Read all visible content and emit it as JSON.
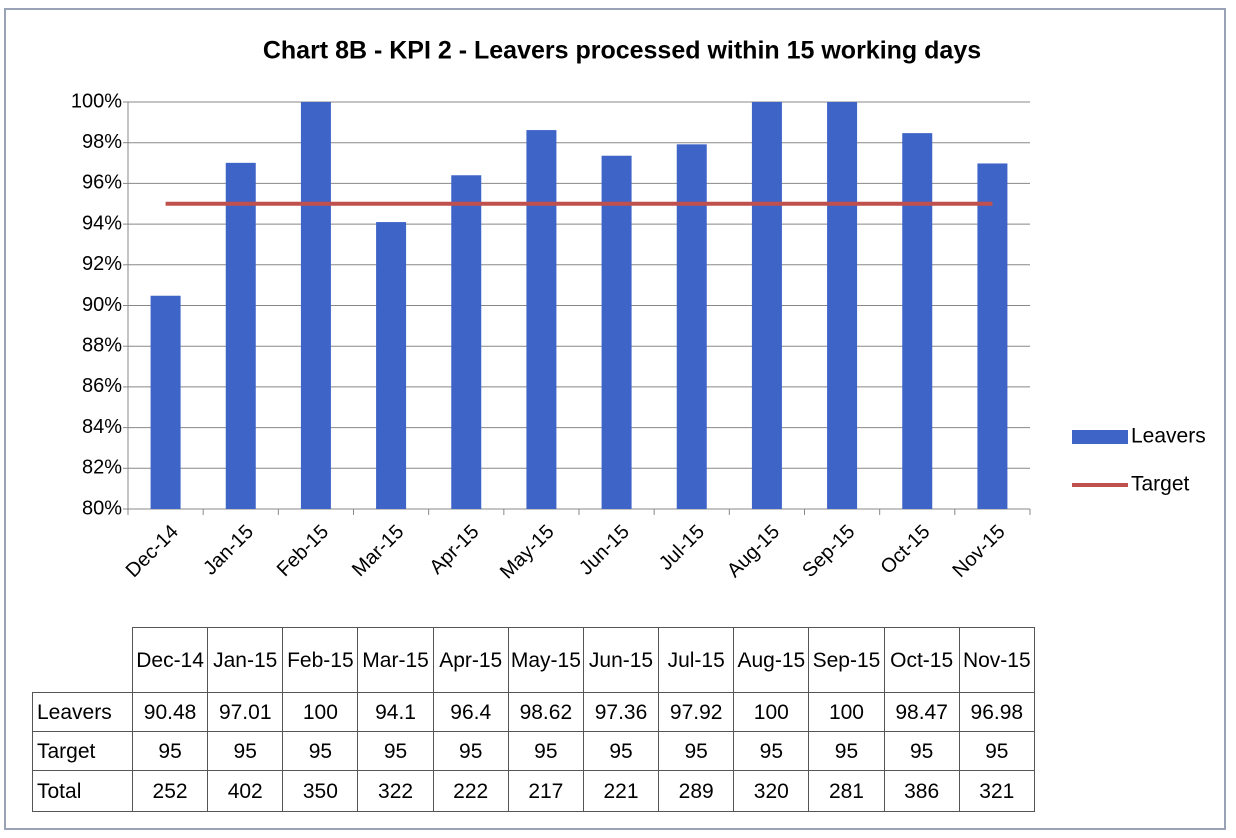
{
  "chart_data": {
    "type": "bar",
    "title": "Chart 8B - KPI 2 - Leavers processed within 15 working days",
    "categories": [
      "Dec-14",
      "Jan-15",
      "Feb-15",
      "Mar-15",
      "Apr-15",
      "May-15",
      "Jun-15",
      "Jul-15",
      "Aug-15",
      "Sep-15",
      "Oct-15",
      "Nov-15"
    ],
    "series": [
      {
        "name": "Leavers",
        "type": "bar",
        "color": "#3f64c8",
        "values": [
          90.48,
          97.01,
          100,
          94.1,
          96.4,
          98.62,
          97.36,
          97.92,
          100,
          100,
          98.47,
          96.98
        ]
      },
      {
        "name": "Target",
        "type": "line",
        "color": "#c0504d",
        "values": [
          95,
          95,
          95,
          95,
          95,
          95,
          95,
          95,
          95,
          95,
          95,
          95
        ]
      }
    ],
    "ylim": [
      80,
      100
    ],
    "yticks": [
      {
        "value": 80,
        "label": "80%"
      },
      {
        "value": 82,
        "label": "82%"
      },
      {
        "value": 84,
        "label": "84%"
      },
      {
        "value": 86,
        "label": "86%"
      },
      {
        "value": 88,
        "label": "88%"
      },
      {
        "value": 90,
        "label": "90%"
      },
      {
        "value": 92,
        "label": "92%"
      },
      {
        "value": 94,
        "label": "94%"
      },
      {
        "value": 96,
        "label": "96%"
      },
      {
        "value": 98,
        "label": "98%"
      },
      {
        "value": 100,
        "label": "100%"
      }
    ],
    "grid": true,
    "legend": "right",
    "data_table": {
      "label": "Total",
      "values": [
        252,
        402,
        350,
        322,
        222,
        217,
        221,
        289,
        320,
        281,
        386,
        321
      ]
    }
  }
}
